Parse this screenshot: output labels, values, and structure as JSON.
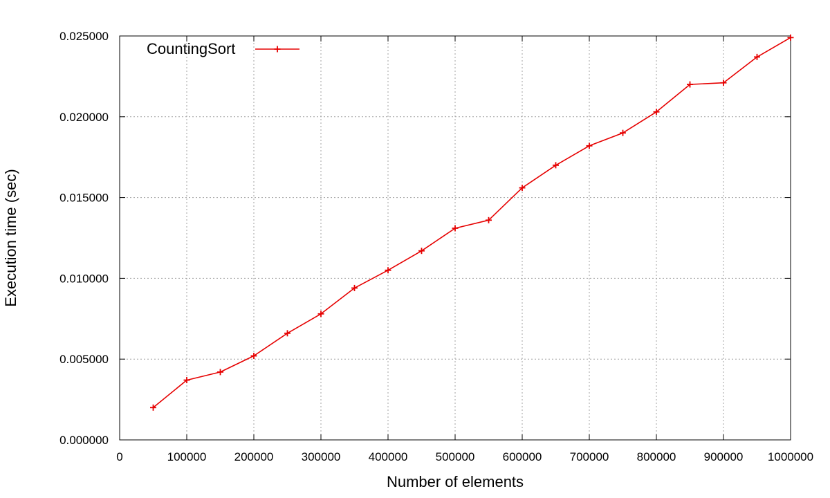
{
  "chart_data": {
    "type": "line",
    "title": "",
    "xlabel": "Number of elements",
    "ylabel": "Execution time (sec)",
    "xlim": [
      0,
      1000000
    ],
    "ylim": [
      0,
      0.025
    ],
    "x_ticks": [
      0,
      100000,
      200000,
      300000,
      400000,
      500000,
      600000,
      700000,
      800000,
      900000,
      1000000
    ],
    "x_tick_labels": [
      "0",
      "100000",
      "200000",
      "300000",
      "400000",
      "500000",
      "600000",
      "700000",
      "800000",
      "900000",
      "1000000"
    ],
    "y_ticks": [
      0,
      0.005,
      0.01,
      0.015,
      0.02,
      0.025
    ],
    "y_tick_labels": [
      "0.000000",
      "0.005000",
      "0.010000",
      "0.015000",
      "0.020000",
      "0.025000"
    ],
    "grid": true,
    "legend_position": "top-left",
    "colors": {
      "series": "#e60000",
      "grid": "#a0a0a0",
      "axis": "#000000"
    },
    "series": [
      {
        "name": "CountingSort",
        "marker": "plus",
        "x": [
          50000,
          100000,
          150000,
          200000,
          250000,
          300000,
          350000,
          400000,
          450000,
          500000,
          550000,
          600000,
          650000,
          700000,
          750000,
          800000,
          850000,
          900000,
          950000,
          1000000
        ],
        "values": [
          0.002,
          0.0037,
          0.0042,
          0.0052,
          0.0066,
          0.0078,
          0.0094,
          0.0105,
          0.0117,
          0.0131,
          0.0136,
          0.0156,
          0.017,
          0.0182,
          0.019,
          0.0203,
          0.022,
          0.0221,
          0.0237,
          0.0249
        ]
      }
    ]
  }
}
